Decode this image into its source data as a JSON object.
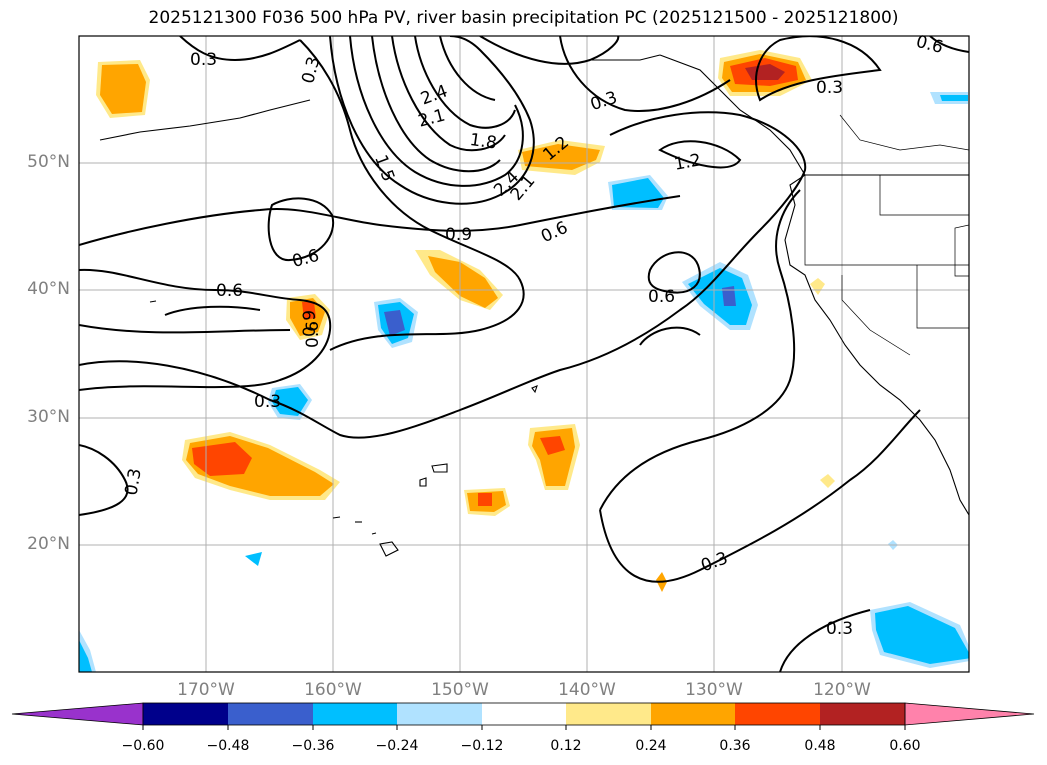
{
  "title": "2025121300 F036 500 hPa PV, river basin precipitation PC (2025121500 - 2025121800)",
  "map": {
    "projection": "PlateCarree",
    "lon_range_deg": [
      -180,
      -110
    ],
    "lat_range_deg": [
      10,
      60
    ],
    "gridlines": true,
    "lat_labels": [
      "50°N",
      "40°N",
      "30°N",
      "20°N"
    ],
    "lon_labels": [
      "170°W",
      "160°W",
      "150°W",
      "140°W",
      "130°W",
      "120°W"
    ],
    "pv_contour_labels": [
      "0.3",
      "0.3",
      "0.3",
      "0.3",
      "0.3",
      "0.3",
      "0.3",
      "0.6",
      "0.6",
      "0.6",
      "0.6",
      "0.6",
      "0.9",
      "0.9",
      "1.2",
      "1.2",
      "1.5",
      "1.8",
      "2.1",
      "2.1",
      "2.4",
      "2.4",
      "0.6",
      "0.3"
    ],
    "colors": {
      "gridline": "#b0b0b0",
      "contour": "#000000",
      "coastline": "#000000"
    }
  },
  "colorbar": {
    "ticks": [
      "−0.60",
      "−0.48",
      "−0.36",
      "−0.24",
      "−0.12",
      "0.12",
      "0.24",
      "0.36",
      "0.48",
      "0.60"
    ],
    "colors": [
      "#9932cc",
      "#00008b",
      "#3a5fcd",
      "#00bfff",
      "#b0e2ff",
      "#ffffff",
      "#ffe98a",
      "#ffa500",
      "#ff4500",
      "#b22222",
      "#ff82ab"
    ],
    "extend": "both"
  }
}
